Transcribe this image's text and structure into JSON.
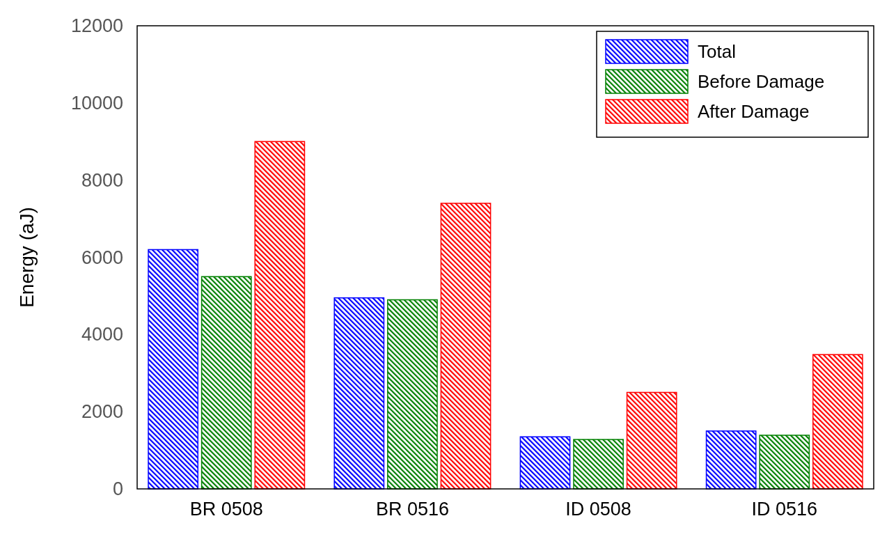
{
  "chart_data": {
    "type": "bar",
    "ylabel": "Energy (aJ)",
    "categories": [
      "BR 0508",
      "BR 0516",
      "ID 0508",
      "ID 0516"
    ],
    "series": [
      {
        "name": "Total",
        "color": "#0000ff",
        "values": [
          6200,
          4950,
          1350,
          1500
        ]
      },
      {
        "name": "Before Damage",
        "color": "#008000",
        "values": [
          5500,
          4900,
          1280,
          1390
        ]
      },
      {
        "name": "After Damage",
        "color": "#ff0000",
        "values": [
          9000,
          7400,
          2500,
          3480
        ]
      }
    ],
    "ylim": [
      0,
      12000
    ],
    "yticks": [
      0,
      2000,
      4000,
      6000,
      8000,
      10000,
      12000
    ],
    "grid": false,
    "legend": "top right"
  }
}
